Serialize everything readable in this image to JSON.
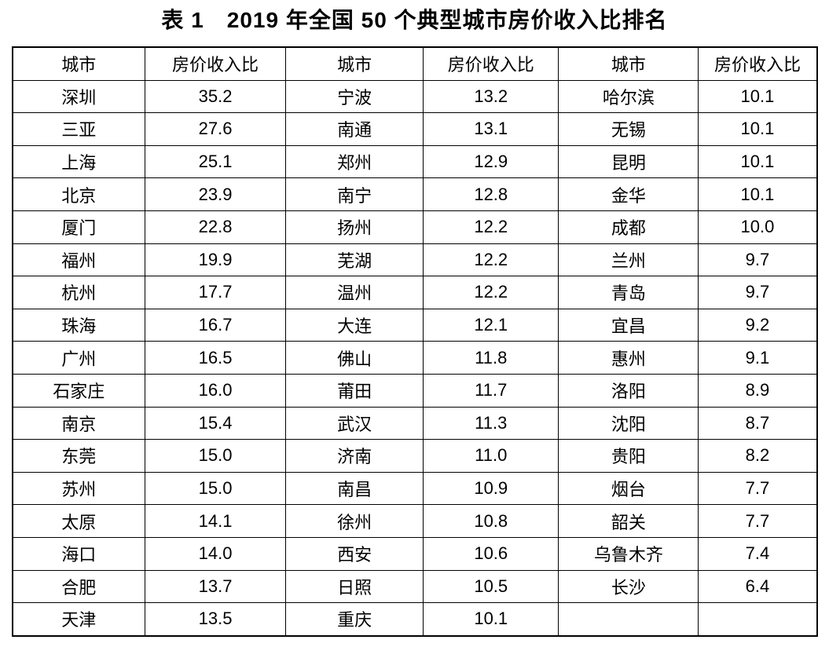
{
  "page": {
    "background_color": "#ffffff",
    "text_color": "#000000",
    "border_color": "#000000"
  },
  "chart_data": {
    "type": "table",
    "title": "表 1　2019 年全国 50 个典型城市房价收入比排名",
    "columns": [
      "城市",
      "房价收入比",
      "城市",
      "房价收入比",
      "城市",
      "房价收入比"
    ],
    "rows": [
      [
        "深圳",
        "35.2",
        "宁波",
        "13.2",
        "哈尔滨",
        "10.1"
      ],
      [
        "三亚",
        "27.6",
        "南通",
        "13.1",
        "无锡",
        "10.1"
      ],
      [
        "上海",
        "25.1",
        "郑州",
        "12.9",
        "昆明",
        "10.1"
      ],
      [
        "北京",
        "23.9",
        "南宁",
        "12.8",
        "金华",
        "10.1"
      ],
      [
        "厦门",
        "22.8",
        "扬州",
        "12.2",
        "成都",
        "10.0"
      ],
      [
        "福州",
        "19.9",
        "芜湖",
        "12.2",
        "兰州",
        "9.7"
      ],
      [
        "杭州",
        "17.7",
        "温州",
        "12.2",
        "青岛",
        "9.7"
      ],
      [
        "珠海",
        "16.7",
        "大连",
        "12.1",
        "宜昌",
        "9.2"
      ],
      [
        "广州",
        "16.5",
        "佛山",
        "11.8",
        "惠州",
        "9.1"
      ],
      [
        "石家庄",
        "16.0",
        "莆田",
        "11.7",
        "洛阳",
        "8.9"
      ],
      [
        "南京",
        "15.4",
        "武汉",
        "11.3",
        "沈阳",
        "8.7"
      ],
      [
        "东莞",
        "15.0",
        "济南",
        "11.0",
        "贵阳",
        "8.2"
      ],
      [
        "苏州",
        "15.0",
        "南昌",
        "10.9",
        "烟台",
        "7.7"
      ],
      [
        "太原",
        "14.1",
        "徐州",
        "10.8",
        "韶关",
        "7.7"
      ],
      [
        "海口",
        "14.0",
        "西安",
        "10.6",
        "乌鲁木齐",
        "7.4"
      ],
      [
        "合肥",
        "13.7",
        "日照",
        "10.5",
        "长沙",
        "6.4"
      ],
      [
        "天津",
        "13.5",
        "重庆",
        "10.1",
        "",
        ""
      ]
    ],
    "column_widths_percent": [
      16.5,
      17.5,
      17.1,
      16.8,
      17.4,
      14.7
    ]
  }
}
